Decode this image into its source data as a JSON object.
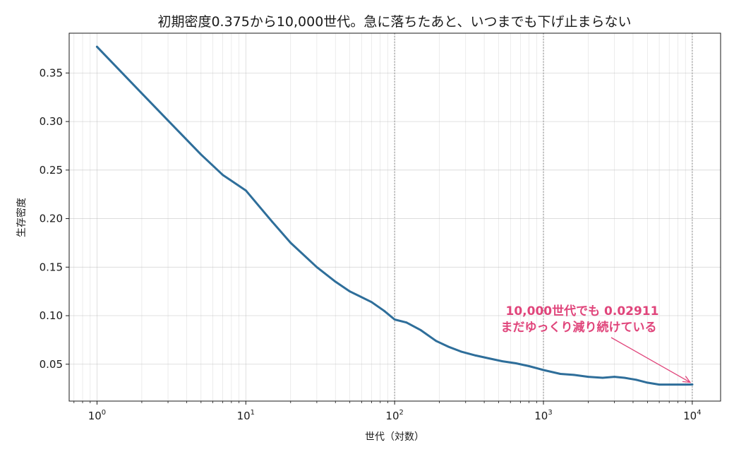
{
  "chart_data": {
    "type": "line",
    "title": "初期密度0.375から10,000世代。急に落ちたあと、いつまでも下げ止まらない",
    "xlabel": "世代（対数）",
    "ylabel": "生存密度",
    "x_scale": "log",
    "xlim": [
      0.65,
      15500
    ],
    "ylim": [
      0.012,
      0.391
    ],
    "x_ticks": [
      {
        "value": 1,
        "base": "10",
        "exp": "0"
      },
      {
        "value": 10,
        "base": "10",
        "exp": "1"
      },
      {
        "value": 100,
        "base": "10",
        "exp": "2"
      },
      {
        "value": 1000,
        "base": "10",
        "exp": "3"
      },
      {
        "value": 10000,
        "base": "10",
        "exp": "4"
      }
    ],
    "y_ticks": [
      "0.05",
      "0.10",
      "0.15",
      "0.20",
      "0.25",
      "0.30",
      "0.35"
    ],
    "grid": true,
    "vlines": [
      100,
      1000,
      10000
    ],
    "series": [
      {
        "color": "#2e6e9a",
        "x": [
          1,
          2,
          3,
          5,
          7,
          10,
          15,
          20,
          30,
          40,
          50,
          70,
          85,
          100,
          120,
          150,
          190,
          230,
          280,
          350,
          430,
          530,
          650,
          800,
          1000,
          1300,
          1600,
          2000,
          2500,
          3000,
          3500,
          4200,
          5000,
          6000,
          7000,
          8000,
          9000,
          10000
        ],
        "y": [
          0.377,
          0.329,
          0.301,
          0.266,
          0.245,
          0.229,
          0.197,
          0.175,
          0.15,
          0.135,
          0.125,
          0.114,
          0.105,
          0.096,
          0.093,
          0.085,
          0.074,
          0.068,
          0.063,
          0.059,
          0.056,
          0.053,
          0.051,
          0.048,
          0.044,
          0.04,
          0.039,
          0.037,
          0.036,
          0.037,
          0.036,
          0.034,
          0.031,
          0.029,
          0.029,
          0.029,
          0.029,
          0.02911
        ]
      }
    ],
    "annotation": {
      "lines": [
        "10,000世代でも 0.02911",
        "まだゆっくり減り続けている"
      ],
      "target_x": 10000,
      "target_y": 0.02911,
      "color": "#e0457b"
    }
  }
}
